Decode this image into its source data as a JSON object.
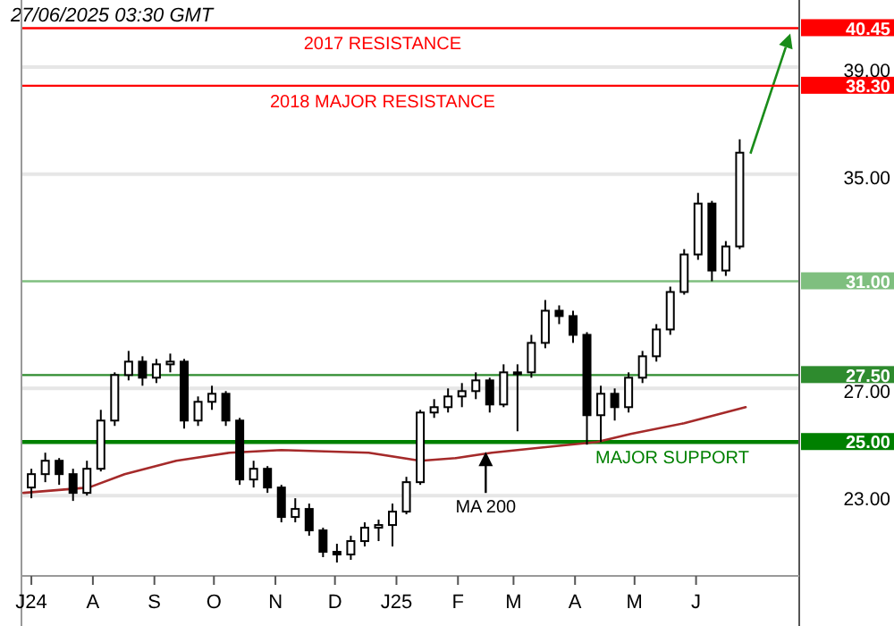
{
  "chart_data": {
    "type": "candlestick",
    "x": [
      "2024-07-01",
      "2024-07-08",
      "2024-07-15",
      "2024-07-22",
      "2024-07-29",
      "2024-08-05",
      "2024-08-12",
      "2024-08-19",
      "2024-08-26",
      "2024-09-02",
      "2024-09-09",
      "2024-09-16",
      "2024-09-23",
      "2024-09-30",
      "2024-10-07",
      "2024-10-14",
      "2024-10-21",
      "2024-10-28",
      "2024-11-04",
      "2024-11-11",
      "2024-11-18",
      "2024-11-25",
      "2024-12-02",
      "2024-12-09",
      "2024-12-16",
      "2024-12-23",
      "2024-12-30",
      "2025-01-06",
      "2025-01-13",
      "2025-01-20",
      "2025-01-27",
      "2025-02-03",
      "2025-02-10",
      "2025-02-17",
      "2025-02-24",
      "2025-03-03",
      "2025-03-10",
      "2025-03-17",
      "2025-03-24",
      "2025-03-31",
      "2025-04-07",
      "2025-04-14",
      "2025-04-21",
      "2025-04-28",
      "2025-05-05",
      "2025-05-12",
      "2025-05-19",
      "2025-05-26",
      "2025-06-02",
      "2025-06-09",
      "2025-06-16",
      "2025-06-23"
    ],
    "ohlc": [
      [
        23.3,
        24.0,
        22.9,
        23.8
      ],
      [
        23.8,
        24.6,
        23.5,
        24.3
      ],
      [
        24.3,
        24.4,
        23.4,
        23.8
      ],
      [
        23.8,
        24.0,
        22.8,
        23.1
      ],
      [
        23.1,
        24.3,
        23.0,
        24.0
      ],
      [
        24.0,
        26.2,
        23.9,
        25.8
      ],
      [
        25.8,
        27.6,
        25.6,
        27.5
      ],
      [
        27.5,
        28.4,
        27.3,
        28.0
      ],
      [
        28.0,
        28.2,
        27.1,
        27.4
      ],
      [
        27.4,
        28.1,
        27.2,
        27.9
      ],
      [
        27.9,
        28.3,
        27.6,
        28.0
      ],
      [
        28.0,
        28.1,
        25.5,
        25.8
      ],
      [
        25.8,
        26.7,
        25.6,
        26.5
      ],
      [
        26.5,
        27.1,
        26.2,
        26.8
      ],
      [
        26.8,
        26.9,
        25.6,
        25.8
      ],
      [
        25.8,
        25.9,
        23.4,
        23.6
      ],
      [
        23.6,
        24.3,
        23.3,
        24.0
      ],
      [
        24.0,
        24.1,
        23.1,
        23.3
      ],
      [
        23.3,
        23.4,
        22.0,
        22.2
      ],
      [
        22.2,
        22.9,
        22.0,
        22.5
      ],
      [
        22.5,
        22.7,
        21.5,
        21.7
      ],
      [
        21.7,
        21.8,
        20.7,
        20.9
      ],
      [
        20.9,
        21.2,
        20.5,
        20.8
      ],
      [
        20.8,
        21.5,
        20.6,
        21.3
      ],
      [
        21.3,
        22.0,
        21.1,
        21.8
      ],
      [
        21.8,
        22.1,
        21.3,
        21.9
      ],
      [
        21.9,
        22.7,
        21.1,
        22.4
      ],
      [
        22.4,
        23.7,
        22.3,
        23.5
      ],
      [
        23.5,
        26.2,
        23.4,
        26.1
      ],
      [
        26.1,
        26.6,
        25.9,
        26.3
      ],
      [
        26.3,
        27.0,
        26.1,
        26.7
      ],
      [
        26.7,
        27.2,
        26.3,
        26.9
      ],
      [
        26.9,
        27.6,
        26.6,
        27.3
      ],
      [
        27.3,
        27.4,
        26.1,
        26.4
      ],
      [
        26.4,
        27.9,
        26.3,
        27.6
      ],
      [
        27.6,
        27.9,
        25.4,
        27.6
      ],
      [
        27.6,
        29.0,
        27.4,
        28.7
      ],
      [
        28.7,
        30.3,
        28.5,
        29.9
      ],
      [
        29.9,
        30.1,
        29.4,
        29.7
      ],
      [
        29.7,
        29.9,
        28.7,
        29.0
      ],
      [
        29.0,
        29.1,
        24.9,
        26.0
      ],
      [
        26.0,
        27.1,
        25.0,
        26.8
      ],
      [
        26.8,
        27.0,
        25.8,
        26.3
      ],
      [
        26.3,
        27.6,
        26.1,
        27.4
      ],
      [
        27.4,
        28.4,
        27.2,
        28.2
      ],
      [
        28.2,
        29.4,
        28.0,
        29.2
      ],
      [
        29.2,
        30.8,
        29.0,
        30.6
      ],
      [
        30.6,
        32.2,
        30.5,
        32.0
      ],
      [
        32.0,
        34.3,
        31.8,
        33.9
      ],
      [
        33.9,
        34.0,
        31.0,
        31.4
      ],
      [
        31.4,
        32.5,
        31.2,
        32.3
      ],
      [
        32.3,
        36.3,
        32.2,
        35.8
      ]
    ],
    "color": "#000000",
    "series": [
      {
        "type": "line",
        "color": "#a52a2a",
        "x": [
          "2024-06-27",
          "2024-07-30",
          "2024-08-17",
          "2024-09-12",
          "2024-10-09",
          "2024-11-04",
          "2024-12-18",
          "2025-01-13",
          "2025-01-31",
          "2025-02-18",
          "2025-03-16",
          "2025-04-12",
          "2025-04-29",
          "2025-05-26",
          "2025-06-26"
        ],
        "values": [
          23.1,
          23.3,
          23.8,
          24.3,
          24.6,
          24.7,
          24.6,
          24.3,
          24.4,
          24.6,
          24.8,
          25.0,
          25.3,
          25.7,
          26.3
        ]
      }
    ],
    "xlim": [
      "2024-06-26",
      "2025-07-23"
    ],
    "xticks": [
      {
        "value": "2024-07-01",
        "label": "J24"
      },
      {
        "value": "2024-08-01",
        "label": "A"
      },
      {
        "value": "2024-09-01",
        "label": "S"
      },
      {
        "value": "2024-10-01",
        "label": "O"
      },
      {
        "value": "2024-11-01",
        "label": "N"
      },
      {
        "value": "2024-12-01",
        "label": "D"
      },
      {
        "value": "2025-01-01",
        "label": "J25"
      },
      {
        "value": "2025-02-01",
        "label": "F"
      },
      {
        "value": "2025-03-01",
        "label": "M"
      },
      {
        "value": "2025-04-01",
        "label": "A"
      },
      {
        "value": "2025-05-01",
        "label": "M"
      },
      {
        "value": "2025-06-01",
        "label": "J"
      }
    ],
    "ylim": [
      20,
      41.5
    ],
    "yticks": [
      {
        "value": 23,
        "label": "23.00"
      },
      {
        "value": 27,
        "label": "27.00"
      },
      {
        "value": 31,
        "label": null
      },
      {
        "value": 35,
        "label": "35.00"
      },
      {
        "value": 39,
        "label": "39.00"
      }
    ],
    "grid": "y",
    "ref_lines": [
      {
        "axis": "y",
        "value": 40.45,
        "label": "40.45",
        "color": "#ff0000"
      },
      {
        "axis": "y",
        "value": 38.3,
        "label": "38.30",
        "color": "#ff0000"
      },
      {
        "axis": "y",
        "value": 31,
        "label": "31.00",
        "color": "#7fbf7f"
      },
      {
        "axis": "y",
        "value": 27.5,
        "label": "27.50",
        "color": "#2e8b2e"
      },
      {
        "axis": "y",
        "value": 25,
        "label": "25.00",
        "color": "#008000"
      }
    ],
    "annotations": [
      "27/06/2025 03:30 GMT",
      {
        "text": "MA 200",
        "x": "2025-02-15",
        "y": 24.7
      },
      {
        "text": "2017 RESISTANCE",
        "x": "2024-12-25",
        "y": 40.45
      },
      {
        "text": "2018 MAJOR RESISTANCE",
        "x": "2024-12-25",
        "y": 38.3
      },
      {
        "text": "MAJOR SUPPORT",
        "x": "2025-05-20",
        "y": 25
      }
    ]
  }
}
